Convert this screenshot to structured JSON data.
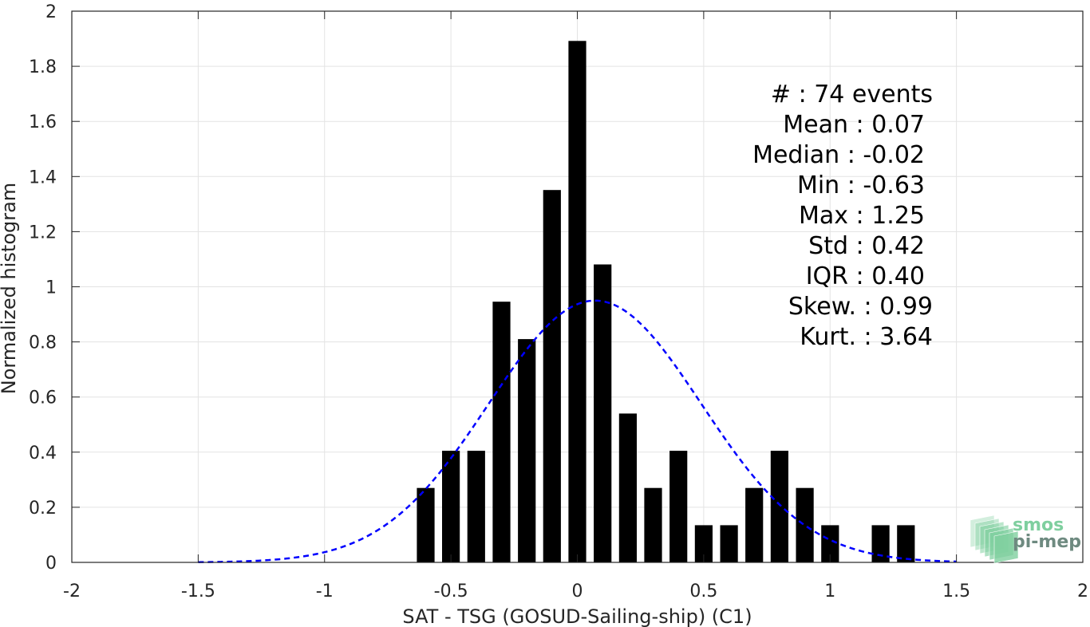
{
  "chart_data": {
    "type": "bar",
    "xlabel": "SAT - TSG (GOSUD-Sailing-ship) (C1)",
    "ylabel": "Normalized histogram",
    "xlim": [
      -2,
      2
    ],
    "ylim": [
      0,
      2
    ],
    "x_ticks": [
      -2,
      -1.5,
      -1,
      -0.5,
      0,
      0.5,
      1,
      1.5,
      2
    ],
    "x_tick_labels": [
      "-2",
      "-1.5",
      "-1",
      "-0.5",
      "0",
      "0.5",
      "1",
      "1.5",
      "2"
    ],
    "y_ticks": [
      0,
      0.2,
      0.4,
      0.6,
      0.8,
      1,
      1.2,
      1.4,
      1.6,
      1.8,
      2
    ],
    "y_tick_labels": [
      "0",
      "0.2",
      "0.4",
      "0.6",
      "0.8",
      "1",
      "1.2",
      "1.4",
      "1.6",
      "1.8",
      "2"
    ],
    "grid": true,
    "bin_width": 0.1,
    "bar_width": 0.07,
    "bar_color": "#000000",
    "bars": [
      {
        "x": -0.6,
        "value": 0.27
      },
      {
        "x": -0.5,
        "value": 0.405
      },
      {
        "x": -0.4,
        "value": 0.405
      },
      {
        "x": -0.3,
        "value": 0.946
      },
      {
        "x": -0.2,
        "value": 0.81
      },
      {
        "x": -0.1,
        "value": 1.351
      },
      {
        "x": 0.0,
        "value": 1.892
      },
      {
        "x": 0.1,
        "value": 1.081
      },
      {
        "x": 0.2,
        "value": 0.54
      },
      {
        "x": 0.3,
        "value": 0.27
      },
      {
        "x": 0.4,
        "value": 0.405
      },
      {
        "x": 0.5,
        "value": 0.135
      },
      {
        "x": 0.6,
        "value": 0.135
      },
      {
        "x": 0.7,
        "value": 0.27
      },
      {
        "x": 0.8,
        "value": 0.405
      },
      {
        "x": 0.9,
        "value": 0.27
      },
      {
        "x": 1.0,
        "value": 0.135
      },
      {
        "x": 1.2,
        "value": 0.135
      },
      {
        "x": 1.3,
        "value": 0.135
      }
    ],
    "fit_curve": {
      "kind": "gaussian",
      "mean": 0.07,
      "std": 0.42,
      "x_range": [
        -1.5,
        1.5
      ],
      "color": "#0000ff",
      "style": "dashed"
    },
    "stats": [
      {
        "label": "#  : 74 events"
      },
      {
        "label": "Mean : 0.07"
      },
      {
        "label": "Median : -0.02"
      },
      {
        "label": "Min : -0.63"
      },
      {
        "label": "Max : 1.25"
      },
      {
        "label": "Std : 0.42"
      },
      {
        "label": "IQR : 0.40"
      },
      {
        "label": "Skew. : 0.99"
      },
      {
        "label": "Kurt. : 3.64"
      }
    ],
    "stats_end_offsets": [
      {
        "line": 0,
        "shift": 10
      },
      {
        "line": 7,
        "shift": 10
      },
      {
        "line": 8,
        "shift": 10
      }
    ]
  },
  "logo": {
    "line1": "smos",
    "line2": "pi-mep",
    "color_light": "#7fcf9f",
    "color_dark": "#6e8a80"
  }
}
